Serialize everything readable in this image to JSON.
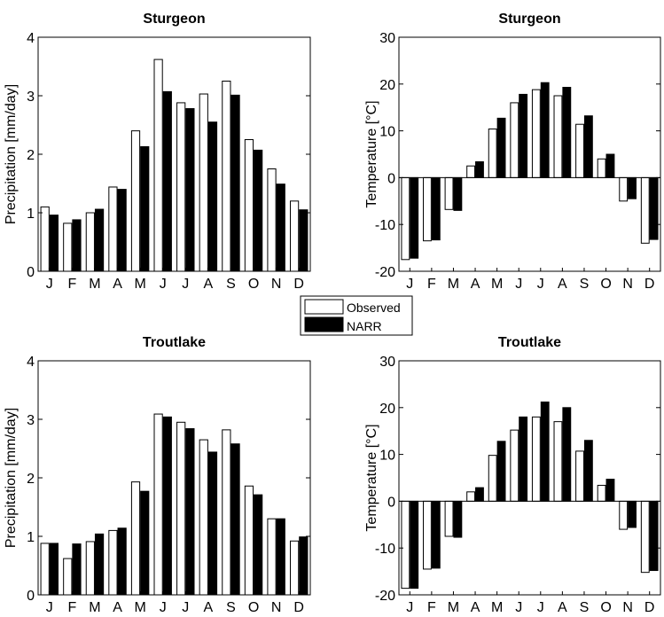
{
  "legend": {
    "entries": [
      {
        "label": "Observed",
        "fill": "#ffffff"
      },
      {
        "label": "NARR",
        "fill": "#000000"
      }
    ]
  },
  "chart_data": [
    {
      "type": "bar",
      "title": "Sturgeon",
      "ylabel": "Precipitation [mm/day]",
      "categories": [
        "J",
        "F",
        "M",
        "A",
        "M",
        "J",
        "J",
        "A",
        "S",
        "O",
        "N",
        "D"
      ],
      "ylim": [
        0,
        4
      ],
      "yticks": [
        0,
        1,
        2,
        3,
        4
      ],
      "series": [
        {
          "name": "Observed",
          "values": [
            1.1,
            0.82,
            1.0,
            1.44,
            2.4,
            3.62,
            2.88,
            3.03,
            3.25,
            2.25,
            1.75,
            1.2
          ]
        },
        {
          "name": "NARR",
          "values": [
            0.96,
            0.88,
            1.06,
            1.4,
            2.13,
            3.07,
            2.78,
            2.55,
            3.01,
            2.07,
            1.49,
            1.05
          ]
        }
      ]
    },
    {
      "type": "bar",
      "title": "Sturgeon",
      "ylabel": "Temperature [°C]",
      "categories": [
        "J",
        "F",
        "M",
        "A",
        "M",
        "J",
        "J",
        "A",
        "S",
        "O",
        "N",
        "D"
      ],
      "ylim": [
        -20,
        30
      ],
      "yticks": [
        -20,
        -10,
        0,
        10,
        20,
        30
      ],
      "series": [
        {
          "name": "Observed",
          "values": [
            -17.5,
            -13.5,
            -6.8,
            2.5,
            10.4,
            16.0,
            18.8,
            17.5,
            11.4,
            4.0,
            -5.0,
            -14.0
          ]
        },
        {
          "name": "NARR",
          "values": [
            -17.2,
            -13.3,
            -7.0,
            3.4,
            12.7,
            17.8,
            20.3,
            19.3,
            13.2,
            5.0,
            -4.5,
            -13.2
          ]
        }
      ]
    },
    {
      "type": "bar",
      "title": "Troutlake",
      "ylabel": "Precipitation [mm/day]",
      "categories": [
        "J",
        "F",
        "M",
        "A",
        "M",
        "J",
        "J",
        "A",
        "S",
        "O",
        "N",
        "D"
      ],
      "ylim": [
        0,
        4
      ],
      "yticks": [
        0,
        1,
        2,
        3,
        4
      ],
      "series": [
        {
          "name": "Observed",
          "values": [
            0.88,
            0.62,
            0.91,
            1.1,
            1.93,
            3.09,
            2.95,
            2.65,
            2.82,
            1.86,
            1.3,
            0.92
          ]
        },
        {
          "name": "NARR",
          "values": [
            0.88,
            0.87,
            1.04,
            1.14,
            1.77,
            3.04,
            2.84,
            2.44,
            2.58,
            1.71,
            1.3,
            0.99
          ]
        }
      ]
    },
    {
      "type": "bar",
      "title": "Troutlake",
      "ylabel": "Temperature [°C]",
      "categories": [
        "J",
        "F",
        "M",
        "A",
        "M",
        "J",
        "J",
        "A",
        "S",
        "O",
        "N",
        "D"
      ],
      "ylim": [
        -20,
        30
      ],
      "yticks": [
        -20,
        -10,
        0,
        10,
        20,
        30
      ],
      "series": [
        {
          "name": "Observed",
          "values": [
            -18.6,
            -14.5,
            -7.5,
            2.0,
            9.8,
            15.2,
            18.0,
            17.0,
            10.7,
            3.4,
            -6.0,
            -15.2
          ]
        },
        {
          "name": "NARR",
          "values": [
            -18.6,
            -14.3,
            -7.7,
            2.9,
            12.8,
            18.0,
            21.2,
            20.0,
            13.0,
            4.7,
            -5.6,
            -14.8
          ]
        }
      ]
    }
  ]
}
